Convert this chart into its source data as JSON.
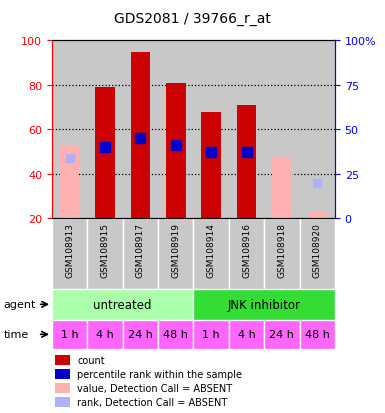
{
  "title": "GDS2081 / 39766_r_at",
  "samples": [
    "GSM108913",
    "GSM108915",
    "GSM108917",
    "GSM108919",
    "GSM108914",
    "GSM108916",
    "GSM108918",
    "GSM108920"
  ],
  "count_values": [
    null,
    79,
    95,
    81,
    68,
    71,
    null,
    null
  ],
  "count_absent_values": [
    53,
    null,
    null,
    null,
    null,
    null,
    47,
    23
  ],
  "rank_values": [
    null,
    52,
    56,
    53,
    50,
    50,
    null,
    null
  ],
  "rank_absent_values": [
    47,
    null,
    null,
    null,
    null,
    null,
    null,
    36
  ],
  "ylim_left": [
    20,
    100
  ],
  "ylim_right": [
    0,
    100
  ],
  "yticks_left": [
    20,
    40,
    60,
    80,
    100
  ],
  "yticks_right": [
    0,
    25,
    50,
    75,
    100
  ],
  "ytick_labels_right": [
    "0",
    "25",
    "50",
    "75",
    "100%"
  ],
  "color_count": "#cc0000",
  "color_rank": "#0000cc",
  "color_count_absent": "#ffb0b0",
  "color_rank_absent": "#b0b0ff",
  "agent_colors": [
    "#aaffaa",
    "#33dd33"
  ],
  "agent_labels": [
    "untreated",
    "JNK inhibitor"
  ],
  "time_labels": [
    "1 h",
    "4 h",
    "24 h",
    "48 h",
    "1 h",
    "4 h",
    "24 h",
    "48 h"
  ],
  "time_color": "#ff66ff",
  "bar_width": 0.55,
  "rank_marker_size": 55,
  "rank_absent_marker_size": 38,
  "col_bg_color": "#c8c8c8"
}
